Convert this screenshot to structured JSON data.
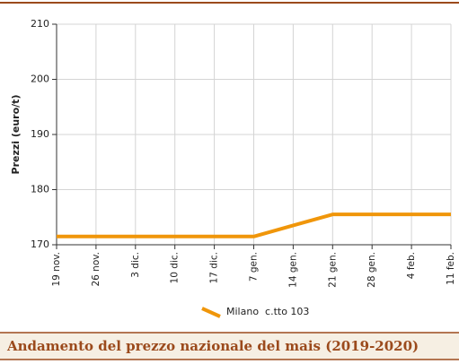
{
  "chart_data": {
    "type": "line",
    "title": "Andamento del prezzo nazionale del mais (2019-2020)",
    "y_label": "Prezzi (euro/t)",
    "categories": [
      "19 nov.",
      "26 nov.",
      "3 dic.",
      "10 dic.",
      "17 dic.",
      "7 gen.",
      "14 gen.",
      "21 gen.",
      "28 gen.",
      "4 feb.",
      "11 feb."
    ],
    "series": [
      {
        "name": "Milano  c.tto 103",
        "color": "#f0960a",
        "values": [
          171.5,
          171.5,
          171.5,
          171.5,
          171.5,
          171.5,
          173.5,
          175.5,
          175.5,
          175.5,
          175.5
        ]
      }
    ],
    "ylim": [
      170,
      210
    ],
    "yticks": [
      170,
      180,
      190,
      200,
      210
    ],
    "grid": true
  }
}
